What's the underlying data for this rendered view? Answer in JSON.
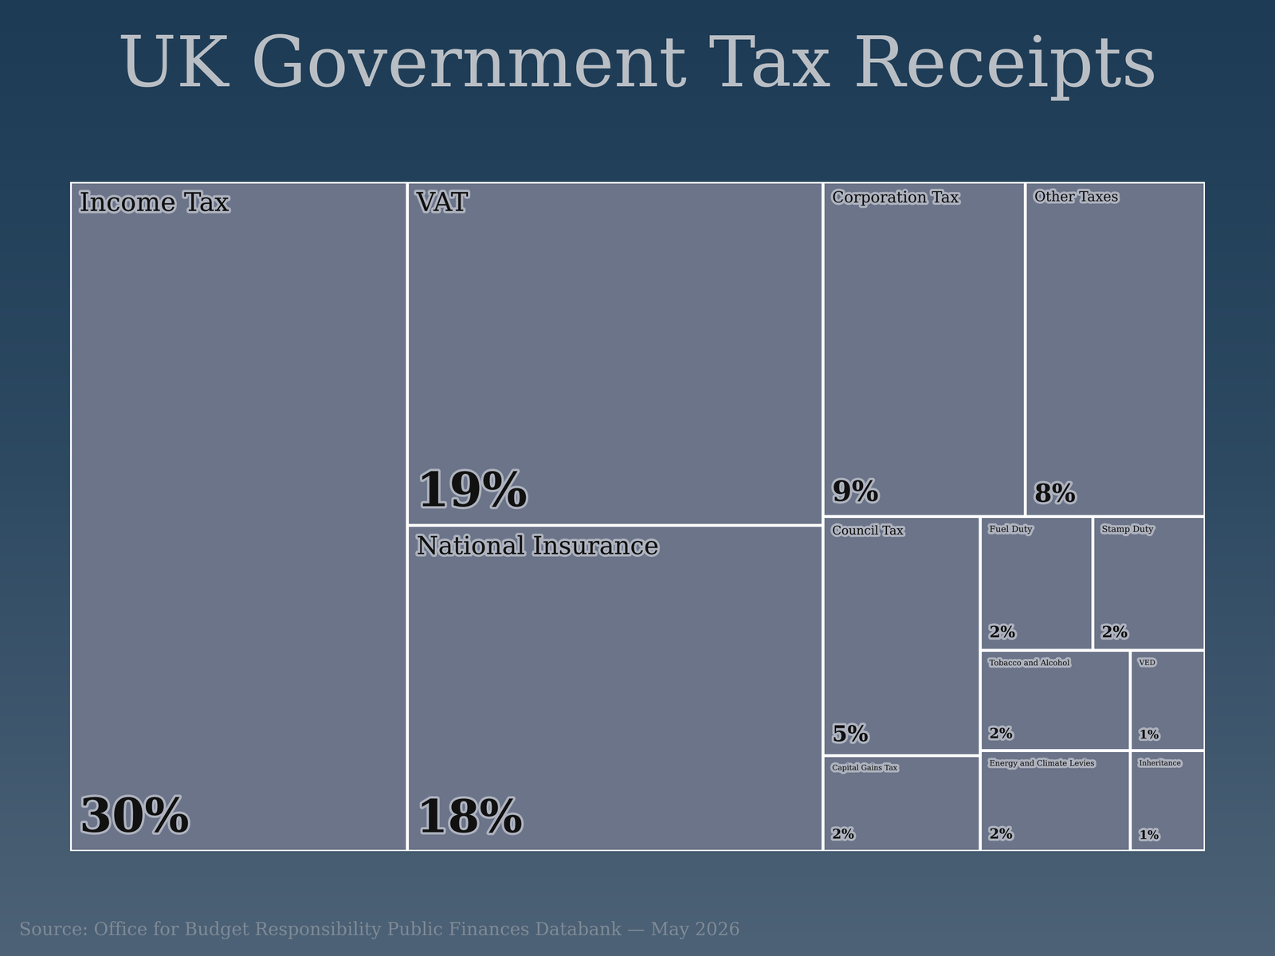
{
  "chart_data": {
    "type": "treemap",
    "title": "UK Government Tax Receipts",
    "categories": [
      "Income Tax",
      "VAT",
      "National Insurance",
      "Corporation Tax",
      "Other Taxes",
      "Council Tax",
      "Capital Gains Tax",
      "Fuel Duty",
      "Stamp Duty",
      "Tobacco and Alcohol",
      "Energy and Climate Levies",
      "VED",
      "Inheritance"
    ],
    "values": [
      30,
      19,
      18,
      9,
      8,
      5,
      2,
      2,
      2,
      2,
      2,
      1,
      1
    ],
    "value_labels": [
      "30%",
      "19%",
      "18%",
      "9%",
      "8%",
      "5%",
      "2%",
      "2%",
      "2%",
      "2%",
      "2%",
      "1%",
      "1%"
    ],
    "data_labels": true,
    "color": "#6b7489",
    "source": "Source: Office for Budget Responsibility Public Finances Databank — May 2026"
  }
}
